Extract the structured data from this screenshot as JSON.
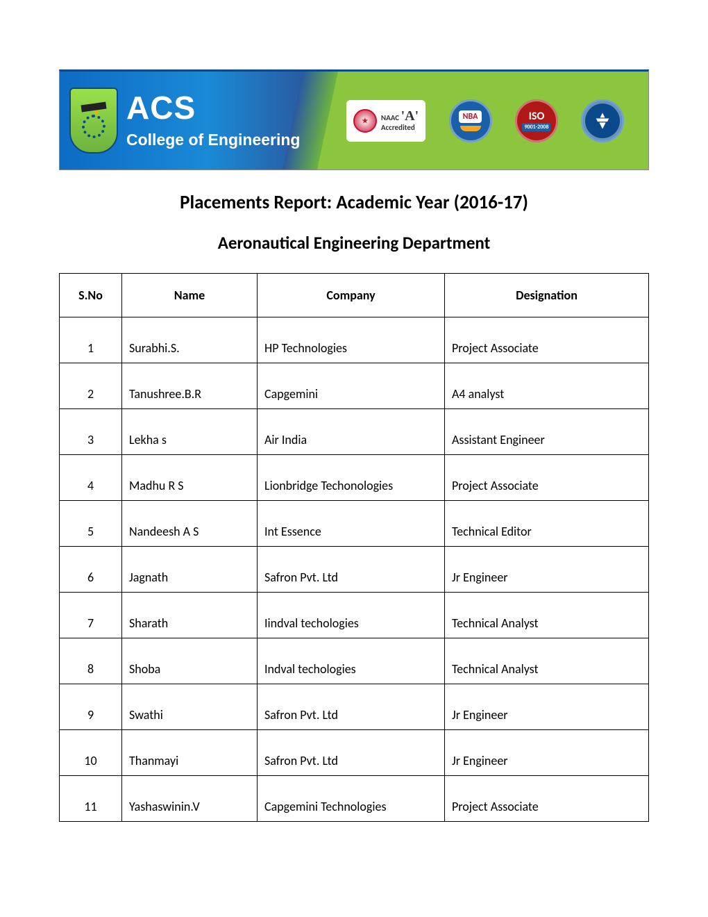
{
  "banner": {
    "org_short": "ACS",
    "org_line2": "College of Engineering",
    "naac_label": "NAAC",
    "naac_grade": "'A'",
    "naac_sub": "Accredited",
    "badges": {
      "nba": "NBA",
      "iso_top": "ISO",
      "iso_sub": "9001-2008"
    },
    "colors": {
      "left_grad_start": "#0d6bc4",
      "left_grad_end": "#2a5aa0",
      "right_bg": "#8cc63f",
      "nba_bg": "#1a5fa8",
      "nba_inner": "#f5a623",
      "iso_bg": "#b01818",
      "seal_bg": "#0a4a8a",
      "naac_circ": "#c8102e"
    }
  },
  "title": "Placements Report: Academic Year (2016-17)",
  "subtitle": "Aeronautical Engineering Department",
  "table": {
    "headers": {
      "sno": "S.No",
      "name": "Name",
      "company": "Company",
      "designation": "Designation"
    },
    "rows": [
      {
        "sno": "1",
        "name": "Surabhi.S.",
        "company": "HP Technologies",
        "designation": "Project Associate"
      },
      {
        "sno": "2",
        "name": "Tanushree.B.R",
        "company": "Capgemini",
        "designation": "A4 analyst"
      },
      {
        "sno": "3",
        "name": "Lekha s",
        "company": "Air India",
        "designation": "Assistant Engineer"
      },
      {
        "sno": "4",
        "name": "Madhu R S",
        "company": "Lionbridge Techonologies",
        "designation": "Project Associate"
      },
      {
        "sno": "5",
        "name": "Nandeesh A S",
        "company": "Int Essence",
        "designation": "Technical Editor"
      },
      {
        "sno": "6",
        "name": "Jagnath",
        "company": "Safron Pvt. Ltd",
        "designation": "Jr Engineer"
      },
      {
        "sno": "7",
        "name": "Sharath",
        "company": "Iindval techologies",
        "designation": "Technical Analyst"
      },
      {
        "sno": "8",
        "name": "Shoba",
        "company": "Indval techologies",
        "designation": "Technical Analyst"
      },
      {
        "sno": "9",
        "name": "Swathi",
        "company": "Safron Pvt. Ltd",
        "designation": "Jr Engineer"
      },
      {
        "sno": "10",
        "name": "Thanmayi",
        "company": "Safron Pvt. Ltd",
        "designation": "Jr Engineer"
      },
      {
        "sno": "11",
        "name": "Yashaswinin.V",
        "company": "Capgemini Technologies",
        "designation": "Project Associate"
      }
    ]
  }
}
